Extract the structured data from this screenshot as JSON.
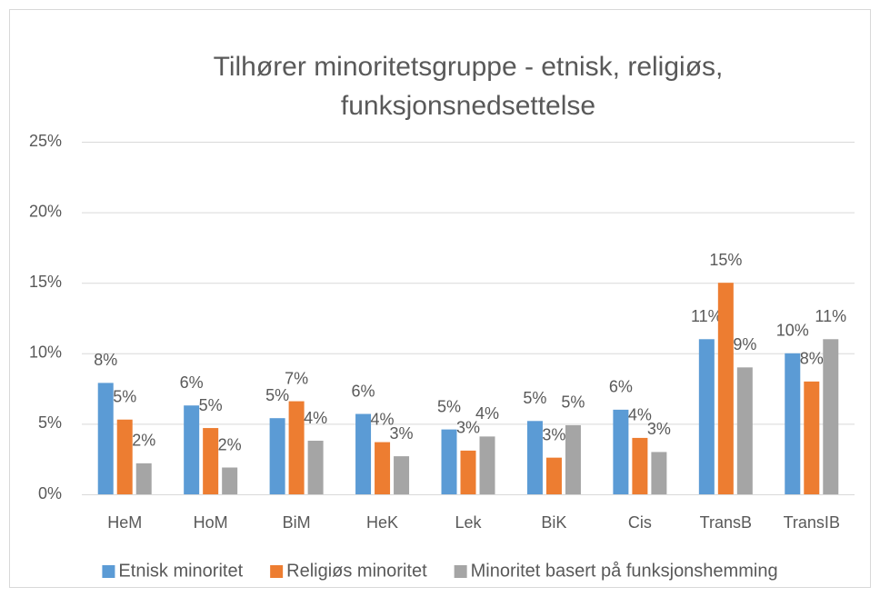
{
  "chart_data": {
    "type": "bar",
    "title": [
      "Tilhører minoritetsgruppe - etnisk, religiøs,",
      "funksjonsnedsettelse"
    ],
    "categories": [
      "HeM",
      "HoM",
      "BiM",
      "HeK",
      "Lek",
      "BiK",
      "Cis",
      "TransB",
      "TransIB"
    ],
    "series": [
      {
        "name": "Etnisk minoritet",
        "color": "#5b9bd5",
        "values": [
          7.9,
          6.3,
          5.4,
          5.7,
          4.6,
          5.2,
          6.0,
          11.0,
          10.0
        ],
        "value_labels": [
          "8%",
          "6%",
          "5%",
          "6%",
          "5%",
          "5%",
          "6%",
          "11%",
          "10%"
        ]
      },
      {
        "name": "Religiøs minoritet",
        "color": "#ed7d31",
        "values": [
          5.3,
          4.7,
          6.6,
          3.7,
          3.1,
          2.6,
          4.0,
          15.0,
          8.0
        ],
        "value_labels": [
          "5%",
          "5%",
          "7%",
          "4%",
          "3%",
          "3%",
          "4%",
          "15%",
          "8%"
        ]
      },
      {
        "name": "Minoritet basert på funksjonshemming",
        "color": "#a5a5a5",
        "values": [
          2.2,
          1.9,
          3.8,
          2.7,
          4.1,
          4.9,
          3.0,
          9.0,
          11.0
        ],
        "value_labels": [
          "2%",
          "2%",
          "4%",
          "3%",
          "4%",
          "5%",
          "3%",
          "9%",
          "11%"
        ]
      }
    ],
    "ylim": [
      0,
      25
    ],
    "yticks": [
      {
        "value": 0,
        "label": "0%"
      },
      {
        "value": 5,
        "label": "5%"
      },
      {
        "value": 10,
        "label": "10%"
      },
      {
        "value": 15,
        "label": "15%"
      },
      {
        "value": 20,
        "label": "20%"
      },
      {
        "value": 25,
        "label": "25%"
      }
    ],
    "grid": true,
    "legend": "bottom"
  }
}
